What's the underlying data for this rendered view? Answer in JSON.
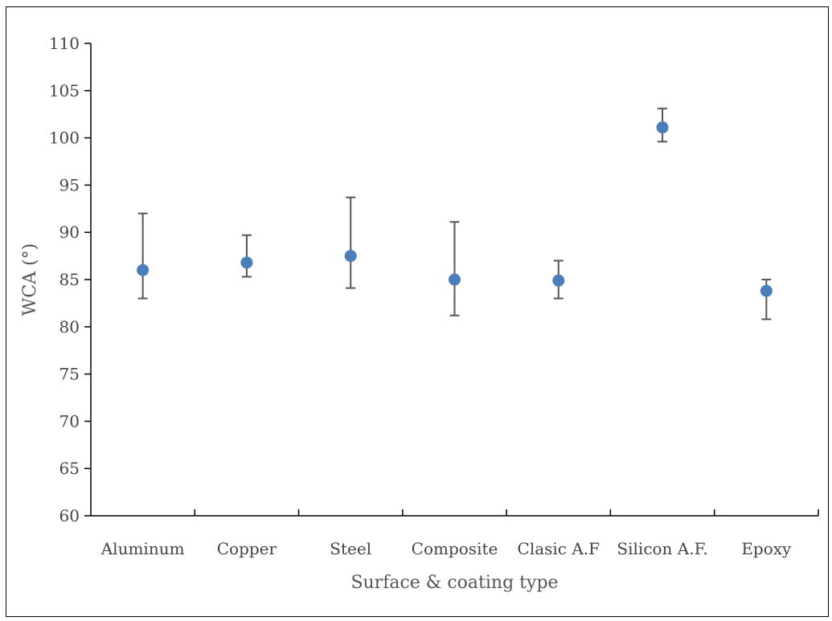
{
  "chart_data": {
    "type": "scatter",
    "xlabel": "Surface & coating type",
    "ylabel": "WCA (°)",
    "ylim": [
      60,
      110
    ],
    "ytick_step": 5,
    "categories": [
      "Aluminum",
      "Copper",
      "Steel",
      "Composite",
      "Clasic A.F",
      "Silicon A.F.",
      "Epoxy"
    ],
    "values": [
      86.0,
      86.8,
      87.5,
      85.0,
      84.9,
      101.1,
      83.8
    ],
    "err_upper": [
      92.0,
      89.7,
      93.7,
      91.1,
      87.0,
      103.1,
      85.0
    ],
    "err_lower": [
      83.0,
      85.3,
      84.1,
      81.2,
      83.0,
      99.6,
      80.8
    ],
    "grid": false,
    "colors": {
      "marker": "#4a7ebb",
      "errorbar": "#555555",
      "axis": "#000000"
    }
  }
}
